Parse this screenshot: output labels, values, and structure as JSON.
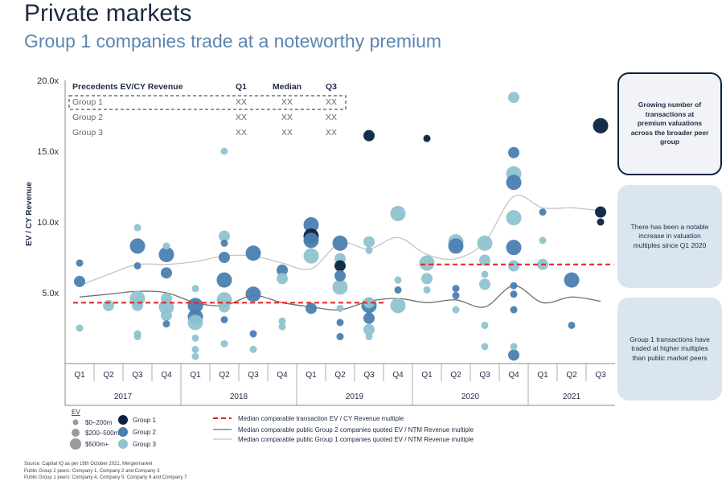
{
  "header": {
    "title": "Private markets",
    "subtitle": "Group 1 companies trade at a noteworthy premium"
  },
  "table": {
    "headers": [
      "Precedents EV/CY Revenue",
      "Q1",
      "Median",
      "Q3"
    ],
    "rows": [
      {
        "name": "Group 1",
        "q1": "XX",
        "median": "XX",
        "q3": "XX"
      },
      {
        "name": "Group 2",
        "q1": "XX",
        "median": "XX",
        "q3": "XX"
      },
      {
        "name": "Group 3",
        "q1": "XX",
        "median": "XX",
        "q3": "XX"
      }
    ]
  },
  "side_boxes": [
    "Growing number of transactions at premium valuations across the broader peer group",
    "There has been a notable increase in valuation multiples since Q1 2020",
    "Group 1 transactions have traded at higher multiples than public market peers"
  ],
  "legend": {
    "ev_title": "EV",
    "sizes": [
      "$0–200m",
      "$200–500m",
      "$500m+"
    ],
    "groups": [
      "Group 1",
      "Group 2",
      "Group 3"
    ],
    "lines": [
      "Median comparable transaction EV / CY Revenue multiple",
      "Median comparable public Group 2 companies quoted EV / NTM Revenue multiple",
      "Median comparable public Group 1 companies quoted EV / NTM Revenue multiple"
    ]
  },
  "source": [
    "Source: Capital IQ as per 18th October 2021, Mergermarket",
    "Public Group 2 peers: Company 1, Company 2 and Company 3",
    "Public Group 1 peers: Company 4, Company 5, Company 6 and Company 7"
  ],
  "colors": {
    "group1": "#0b2340",
    "group2": "#4a7fb0",
    "group3": "#8fc3cf",
    "median_line": "#e0211f",
    "group2_line": "#6e6e6e",
    "group1_line": "#c4c4c4"
  },
  "chart_data": {
    "type": "scatter",
    "title": "",
    "ylabel": "EV / CY Revenue",
    "ylim": [
      0,
      20
    ],
    "yticks": [
      "5.0x",
      "10.0x",
      "15.0x",
      "20.0x"
    ],
    "ytick_values": [
      5,
      10,
      15,
      20
    ],
    "quarters": [
      "Q1",
      "Q2",
      "Q3",
      "Q4",
      "Q1",
      "Q2",
      "Q3",
      "Q4",
      "Q1",
      "Q2",
      "Q3",
      "Q4",
      "Q1",
      "Q2",
      "Q3",
      "Q4",
      "Q1",
      "Q2",
      "Q3"
    ],
    "years": [
      {
        "label": "2017",
        "start": 0,
        "end": 4
      },
      {
        "label": "2018",
        "start": 4,
        "end": 8
      },
      {
        "label": "2019",
        "start": 8,
        "end": 12
      },
      {
        "label": "2020",
        "start": 12,
        "end": 16
      },
      {
        "label": "2021",
        "start": 16,
        "end": 19
      }
    ],
    "points": [
      {
        "q": 0,
        "y": 7.1,
        "g": 2,
        "s": 1
      },
      {
        "q": 0,
        "y": 5.8,
        "g": 2,
        "s": 2
      },
      {
        "q": 0,
        "y": 2.5,
        "g": 3,
        "s": 1
      },
      {
        "q": 1,
        "y": 4.1,
        "g": 3,
        "s": 2
      },
      {
        "q": 2,
        "y": 9.6,
        "g": 3,
        "s": 1
      },
      {
        "q": 2,
        "y": 8.3,
        "g": 2,
        "s": 3
      },
      {
        "q": 2,
        "y": 6.9,
        "g": 2,
        "s": 1
      },
      {
        "q": 2,
        "y": 4.6,
        "g": 3,
        "s": 3
      },
      {
        "q": 2,
        "y": 4.1,
        "g": 3,
        "s": 2
      },
      {
        "q": 2,
        "y": 2.1,
        "g": 3,
        "s": 1
      },
      {
        "q": 2,
        "y": 1.9,
        "g": 3,
        "s": 1
      },
      {
        "q": 3,
        "y": 8.3,
        "g": 3,
        "s": 1
      },
      {
        "q": 3,
        "y": 7.7,
        "g": 2,
        "s": 3
      },
      {
        "q": 3,
        "y": 6.4,
        "g": 2,
        "s": 2
      },
      {
        "q": 3,
        "y": 4.6,
        "g": 3,
        "s": 2
      },
      {
        "q": 3,
        "y": 4.0,
        "g": 3,
        "s": 3
      },
      {
        "q": 3,
        "y": 3.4,
        "g": 3,
        "s": 2
      },
      {
        "q": 3,
        "y": 2.8,
        "g": 2,
        "s": 1
      },
      {
        "q": 4,
        "y": 5.3,
        "g": 3,
        "s": 1
      },
      {
        "q": 4,
        "y": 4.1,
        "g": 2,
        "s": 3
      },
      {
        "q": 4,
        "y": 3.3,
        "g": 2,
        "s": 3
      },
      {
        "q": 4,
        "y": 2.9,
        "g": 3,
        "s": 3
      },
      {
        "q": 4,
        "y": 1.8,
        "g": 3,
        "s": 1
      },
      {
        "q": 4,
        "y": 1.0,
        "g": 3,
        "s": 1
      },
      {
        "q": 4,
        "y": 0.5,
        "g": 3,
        "s": 1
      },
      {
        "q": 5,
        "y": 15.0,
        "g": 3,
        "s": 1
      },
      {
        "q": 5,
        "y": 9.0,
        "g": 3,
        "s": 2
      },
      {
        "q": 5,
        "y": 8.5,
        "g": 2,
        "s": 1
      },
      {
        "q": 5,
        "y": 7.5,
        "g": 2,
        "s": 2
      },
      {
        "q": 5,
        "y": 5.9,
        "g": 2,
        "s": 3
      },
      {
        "q": 5,
        "y": 4.5,
        "g": 3,
        "s": 3
      },
      {
        "q": 5,
        "y": 4.0,
        "g": 3,
        "s": 2
      },
      {
        "q": 5,
        "y": 3.1,
        "g": 2,
        "s": 1
      },
      {
        "q": 5,
        "y": 1.4,
        "g": 3,
        "s": 1
      },
      {
        "q": 6,
        "y": 7.8,
        "g": 2,
        "s": 3
      },
      {
        "q": 6,
        "y": 4.9,
        "g": 2,
        "s": 3
      },
      {
        "q": 6,
        "y": 2.1,
        "g": 2,
        "s": 1
      },
      {
        "q": 6,
        "y": 1.0,
        "g": 3,
        "s": 1
      },
      {
        "q": 7,
        "y": 6.6,
        "g": 2,
        "s": 2
      },
      {
        "q": 7,
        "y": 6.0,
        "g": 3,
        "s": 2
      },
      {
        "q": 7,
        "y": 3.0,
        "g": 3,
        "s": 1
      },
      {
        "q": 7,
        "y": 2.6,
        "g": 3,
        "s": 1
      },
      {
        "q": 8,
        "y": 9.8,
        "g": 2,
        "s": 3
      },
      {
        "q": 8,
        "y": 9.0,
        "g": 1,
        "s": 3
      },
      {
        "q": 8,
        "y": 8.7,
        "g": 2,
        "s": 3
      },
      {
        "q": 8,
        "y": 7.6,
        "g": 3,
        "s": 3
      },
      {
        "q": 8,
        "y": 3.9,
        "g": 2,
        "s": 2
      },
      {
        "q": 9,
        "y": 8.5,
        "g": 2,
        "s": 3
      },
      {
        "q": 9,
        "y": 7.4,
        "g": 3,
        "s": 2
      },
      {
        "q": 9,
        "y": 6.9,
        "g": 1,
        "s": 2
      },
      {
        "q": 9,
        "y": 6.2,
        "g": 2,
        "s": 2
      },
      {
        "q": 9,
        "y": 5.4,
        "g": 3,
        "s": 3
      },
      {
        "q": 9,
        "y": 3.9,
        "g": 3,
        "s": 1
      },
      {
        "q": 9,
        "y": 2.9,
        "g": 2,
        "s": 1
      },
      {
        "q": 9,
        "y": 1.9,
        "g": 2,
        "s": 1
      },
      {
        "q": 10,
        "y": 16.1,
        "g": 1,
        "s": 2
      },
      {
        "q": 10,
        "y": 8.6,
        "g": 3,
        "s": 2
      },
      {
        "q": 10,
        "y": 8.0,
        "g": 3,
        "s": 1
      },
      {
        "q": 10,
        "y": 4.3,
        "g": 3,
        "s": 2
      },
      {
        "q": 10,
        "y": 4.1,
        "g": 2,
        "s": 3
      },
      {
        "q": 10,
        "y": 3.2,
        "g": 2,
        "s": 2
      },
      {
        "q": 10,
        "y": 2.4,
        "g": 3,
        "s": 2
      },
      {
        "q": 10,
        "y": 1.9,
        "g": 3,
        "s": 1
      },
      {
        "q": 11,
        "y": 10.6,
        "g": 3,
        "s": 3
      },
      {
        "q": 11,
        "y": 5.9,
        "g": 3,
        "s": 1
      },
      {
        "q": 11,
        "y": 5.2,
        "g": 2,
        "s": 1
      },
      {
        "q": 11,
        "y": 4.1,
        "g": 3,
        "s": 3
      },
      {
        "q": 12,
        "y": 15.9,
        "g": 1,
        "s": 1
      },
      {
        "q": 12,
        "y": 7.1,
        "g": 3,
        "s": 3
      },
      {
        "q": 12,
        "y": 6.0,
        "g": 3,
        "s": 2
      },
      {
        "q": 12,
        "y": 5.2,
        "g": 3,
        "s": 1
      },
      {
        "q": 13,
        "y": 8.6,
        "g": 3,
        "s": 3
      },
      {
        "q": 13,
        "y": 8.3,
        "g": 2,
        "s": 3
      },
      {
        "q": 13,
        "y": 5.3,
        "g": 2,
        "s": 1
      },
      {
        "q": 13,
        "y": 4.8,
        "g": 2,
        "s": 1
      },
      {
        "q": 13,
        "y": 3.8,
        "g": 3,
        "s": 1
      },
      {
        "q": 14,
        "y": 8.5,
        "g": 3,
        "s": 3
      },
      {
        "q": 14,
        "y": 7.3,
        "g": 3,
        "s": 2
      },
      {
        "q": 14,
        "y": 6.3,
        "g": 3,
        "s": 1
      },
      {
        "q": 14,
        "y": 5.6,
        "g": 3,
        "s": 2
      },
      {
        "q": 14,
        "y": 2.7,
        "g": 3,
        "s": 1
      },
      {
        "q": 14,
        "y": 1.2,
        "g": 3,
        "s": 1
      },
      {
        "q": 15,
        "y": 18.8,
        "g": 3,
        "s": 2
      },
      {
        "q": 15,
        "y": 14.9,
        "g": 2,
        "s": 2
      },
      {
        "q": 15,
        "y": 13.4,
        "g": 3,
        "s": 3
      },
      {
        "q": 15,
        "y": 12.8,
        "g": 2,
        "s": 3
      },
      {
        "q": 15,
        "y": 10.3,
        "g": 3,
        "s": 3
      },
      {
        "q": 15,
        "y": 8.2,
        "g": 2,
        "s": 3
      },
      {
        "q": 15,
        "y": 6.9,
        "g": 3,
        "s": 2
      },
      {
        "q": 15,
        "y": 5.5,
        "g": 2,
        "s": 1
      },
      {
        "q": 15,
        "y": 4.9,
        "g": 2,
        "s": 1
      },
      {
        "q": 15,
        "y": 3.8,
        "g": 2,
        "s": 1
      },
      {
        "q": 15,
        "y": 1.2,
        "g": 3,
        "s": 1
      },
      {
        "q": 15,
        "y": 0.6,
        "g": 2,
        "s": 2
      },
      {
        "q": 16,
        "y": 10.7,
        "g": 2,
        "s": 1
      },
      {
        "q": 16,
        "y": 8.7,
        "g": 3,
        "s": 1
      },
      {
        "q": 16,
        "y": 7.0,
        "g": 3,
        "s": 2
      },
      {
        "q": 17,
        "y": 5.9,
        "g": 2,
        "s": 3
      },
      {
        "q": 17,
        "y": 2.7,
        "g": 2,
        "s": 1
      },
      {
        "q": 18,
        "y": 16.8,
        "g": 1,
        "s": 3
      },
      {
        "q": 18,
        "y": 10.7,
        "g": 1,
        "s": 2
      },
      {
        "q": 18,
        "y": 10.0,
        "g": 1,
        "s": 1
      }
    ],
    "median_transaction": [
      {
        "from": 0,
        "to": 11,
        "y": 4.3
      },
      {
        "from": 12,
        "to": 18.9,
        "y": 7.0
      }
    ],
    "group2_line": [
      [
        0,
        4.7
      ],
      [
        1,
        4.9
      ],
      [
        2,
        5.1
      ],
      [
        3,
        5.0
      ],
      [
        4,
        4.3
      ],
      [
        5,
        4.1
      ],
      [
        6,
        4.8
      ],
      [
        7,
        4.3
      ],
      [
        8,
        4.0
      ],
      [
        9,
        3.8
      ],
      [
        10,
        4.4
      ],
      [
        11,
        4.6
      ],
      [
        12,
        4.3
      ],
      [
        13,
        4.5
      ],
      [
        14,
        4.0
      ],
      [
        15,
        5.5
      ],
      [
        16,
        4.3
      ],
      [
        17,
        4.7
      ],
      [
        18,
        4.4
      ]
    ],
    "group1_line": [
      [
        0,
        5.5
      ],
      [
        1,
        6.3
      ],
      [
        2,
        7.0
      ],
      [
        3,
        7.0
      ],
      [
        4,
        7.2
      ],
      [
        5,
        7.6
      ],
      [
        6,
        7.6
      ],
      [
        7,
        7.1
      ],
      [
        8,
        6.7
      ],
      [
        9,
        8.5
      ],
      [
        10,
        8.1
      ],
      [
        11,
        8.9
      ],
      [
        12,
        7.7
      ],
      [
        13,
        7.4
      ],
      [
        14,
        8.6
      ],
      [
        15,
        11.8
      ],
      [
        16,
        11.0
      ],
      [
        17,
        11.0
      ],
      [
        18,
        10.8
      ]
    ]
  }
}
